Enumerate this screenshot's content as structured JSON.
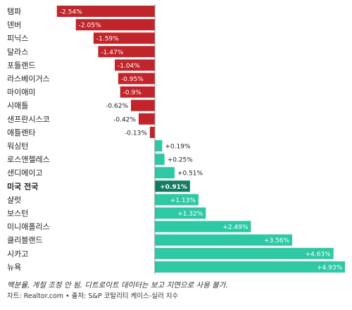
{
  "chart_data": {
    "type": "bar",
    "orientation": "horizontal",
    "categories": [
      "탬파",
      "덴버",
      "피닉스",
      "달라스",
      "포틀랜드",
      "라스베이거스",
      "마이애미",
      "시애틀",
      "샌프란시스코",
      "애틀랜타",
      "워싱턴",
      "로스앤젤레스",
      "샌디에이고",
      "미국 전국",
      "샬럿",
      "보스턴",
      "미니애폴리스",
      "클리블랜드",
      "시카고",
      "뉴욕"
    ],
    "values": [
      -2.54,
      -2.05,
      -1.59,
      -1.47,
      -1.04,
      -0.95,
      -0.9,
      -0.62,
      -0.42,
      -0.13,
      0.19,
      0.25,
      0.51,
      0.91,
      1.13,
      1.32,
      2.49,
      3.56,
      4.63,
      4.93
    ],
    "value_labels": [
      "-2.54%",
      "-2.05%",
      "-1.59%",
      "-1.47%",
      "-1.04%",
      "-0.95%",
      "-0.9%",
      "-0.62%",
      "-0.42%",
      "-0.13%",
      "+0.19%",
      "+0.25%",
      "+0.51%",
      "+0.91%",
      "+1.13%",
      "+1.32%",
      "+2.49%",
      "+3.56%",
      "+4.63%",
      "+4.93%"
    ],
    "highlight": "미국 전국",
    "colors": {
      "negative": "#c0252b",
      "positive": "#2ec9a4",
      "highlight": "#147a62",
      "axis": "#888888"
    }
  },
  "footer": {
    "note": "백분율, 계절 조정 안 됨. 디트로이트 데이터는 보고 지연으로 사용 불가.",
    "source": "차트: Realtor.com • 출처: S&P 코탈리티 케이스-실러 지수"
  }
}
